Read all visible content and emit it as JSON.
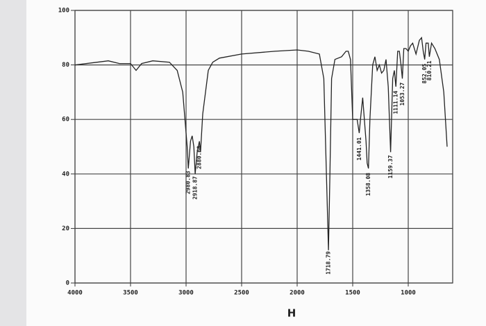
{
  "chart_data": {
    "type": "line",
    "label": "H",
    "x": [
      4000,
      3800,
      3700,
      3600,
      3500,
      3450,
      3400,
      3300,
      3150,
      3080,
      3030,
      2990,
      2980,
      2960,
      2945,
      2930,
      2918,
      2900,
      2880,
      2870,
      2850,
      2800,
      2760,
      2700,
      2500,
      2200,
      2000,
      1900,
      1800,
      1760,
      1730,
      1718,
      1705,
      1690,
      1660,
      1600,
      1560,
      1540,
      1520,
      1500,
      1480,
      1460,
      1441,
      1430,
      1410,
      1395,
      1380,
      1370,
      1358,
      1345,
      1320,
      1300,
      1280,
      1260,
      1240,
      1220,
      1200,
      1180,
      1159,
      1140,
      1125,
      1111,
      1095,
      1080,
      1065,
      1053,
      1040,
      1020,
      1000,
      980,
      960,
      930,
      900,
      880,
      865,
      852,
      840,
      820,
      810,
      790,
      760,
      720,
      680,
      650
    ],
    "values": [
      80,
      81,
      81.5,
      80.5,
      80.5,
      78,
      80.5,
      81.5,
      81,
      78,
      70,
      50,
      42,
      52,
      54,
      50,
      40,
      48,
      52,
      48,
      62,
      78,
      81,
      82.5,
      84,
      85,
      85.5,
      85,
      84,
      75,
      30,
      12,
      40,
      75,
      82,
      83,
      85,
      85,
      82,
      60,
      60,
      60,
      55,
      60,
      68,
      60,
      52,
      44,
      42,
      60,
      80,
      83,
      78,
      80,
      77,
      78,
      82,
      72,
      48,
      75,
      78,
      72,
      85,
      85,
      80,
      75,
      86,
      86,
      85,
      87,
      88,
      84,
      89,
      90,
      85,
      82,
      88,
      88,
      83,
      88,
      86,
      82,
      70,
      50
    ],
    "color": "#222222",
    "xlim": [
      4000,
      600
    ],
    "ylim": [
      0,
      100
    ],
    "xticks": [
      4000,
      3500,
      3000,
      2500,
      2000,
      1500,
      1000
    ],
    "yticks": [
      0,
      20,
      40,
      60,
      80,
      100
    ],
    "grid": true,
    "annotations": [
      {
        "text": "2980.83",
        "x": 2980.83
      },
      {
        "text": "2918.87",
        "x": 2918.87
      },
      {
        "text": "2880.60",
        "x": 2880.6
      },
      {
        "text": "1718.79",
        "x": 1718.79
      },
      {
        "text": "1441.01",
        "x": 1441.01
      },
      {
        "text": "1358.08",
        "x": 1358.08
      },
      {
        "text": "1159.37",
        "x": 1159.37
      },
      {
        "text": "1111.14",
        "x": 1111.14
      },
      {
        "text": "1053.27",
        "x": 1053.27
      },
      {
        "text": "852.05",
        "x": 852.05
      },
      {
        "text": "810.21",
        "x": 810.21
      }
    ]
  }
}
